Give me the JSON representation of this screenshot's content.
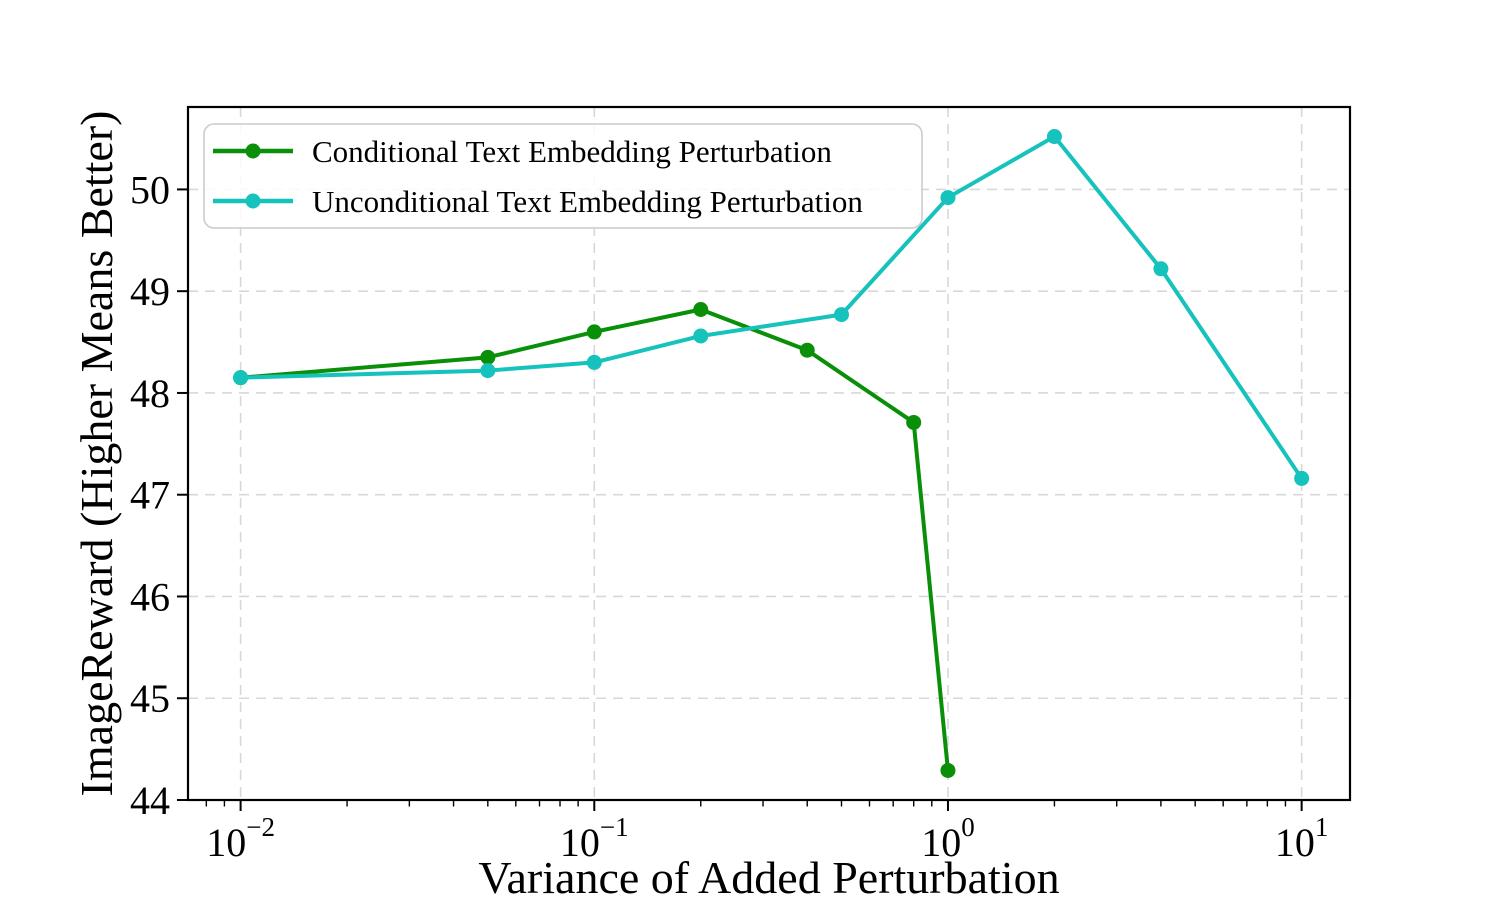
{
  "chart_data": {
    "type": "line",
    "title": "",
    "xlabel": "Variance of Added Perturbation",
    "ylabel": "ImageReward (Higher Means Better)",
    "x_scale": "log10",
    "xlim": [
      0.0071,
      13.7
    ],
    "ylim": [
      44,
      50.81
    ],
    "grid": "dashed-major-both-axes",
    "grid_color": "#d8d8d8",
    "axis_color": "#000000",
    "legend_position": "upper-left",
    "x_axis": {
      "major_ticks": [
        {
          "value": 0.01,
          "base": "10",
          "exp": "−2"
        },
        {
          "value": 0.1,
          "base": "10",
          "exp": "−1"
        },
        {
          "value": 1,
          "base": "10",
          "exp": "0"
        },
        {
          "value": 10,
          "base": "10",
          "exp": "1"
        }
      ],
      "minor_ticks": [
        0.008,
        0.009,
        0.02,
        0.03,
        0.04,
        0.05,
        0.06,
        0.07,
        0.08,
        0.09,
        0.2,
        0.3,
        0.4,
        0.5,
        0.6,
        0.7,
        0.8,
        0.9,
        2,
        3,
        4,
        5,
        6,
        7,
        8,
        9
      ]
    },
    "y_axis": {
      "major_ticks": [
        44,
        45,
        46,
        47,
        48,
        49,
        50
      ],
      "gridline_ticks": [
        45,
        46,
        47,
        48,
        49,
        50
      ]
    },
    "series": [
      {
        "name": "Conditional Text Embedding Perturbation",
        "color": "#0a8f08",
        "x": [
          0.01,
          0.05,
          0.1,
          0.2,
          0.4,
          0.8,
          1.0
        ],
        "y": [
          48.15,
          48.35,
          48.6,
          48.82,
          48.42,
          47.71,
          44.29
        ]
      },
      {
        "name": "Unconditional Text Embedding Perturbation",
        "color": "#16c2bc",
        "x": [
          0.01,
          0.05,
          0.1,
          0.2,
          0.5,
          1.0,
          2.0,
          4.0,
          10.0
        ],
        "y": [
          48.15,
          48.22,
          48.3,
          48.56,
          48.77,
          49.92,
          50.52,
          49.22,
          47.16
        ]
      }
    ],
    "legend": {
      "entries": [
        "Conditional Text Embedding Perturbation",
        "Unconditional Text Embedding Perturbation"
      ]
    }
  }
}
